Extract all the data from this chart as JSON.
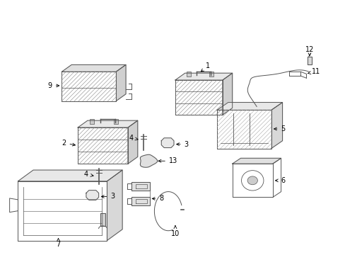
{
  "bg_color": "#ffffff",
  "line_color": "#555555",
  "figsize": [
    4.89,
    3.6
  ],
  "dpi": 100
}
